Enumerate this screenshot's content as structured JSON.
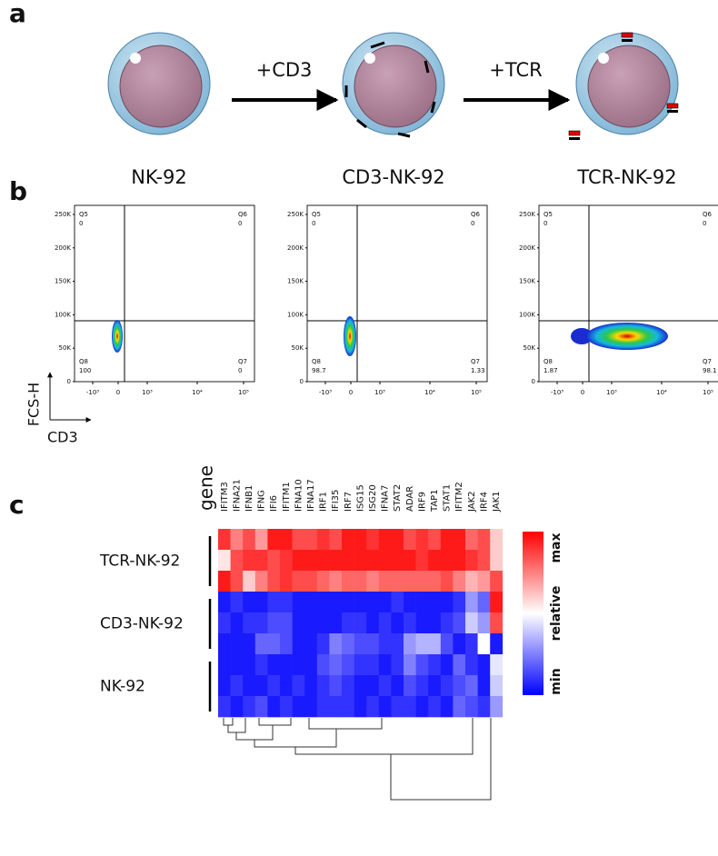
{
  "panel_a": {
    "label": "a",
    "cells": [
      "NK-92",
      "CD3-NK-92",
      "TCR-NK-92"
    ],
    "arrows": [
      "+CD3",
      "+TCR"
    ]
  },
  "panel_b": {
    "label": "b",
    "y_axis": "FCS-H",
    "x_axis": "CD3",
    "y_ticks": [
      "250K",
      "200K",
      "150K",
      "100K",
      "50K",
      "0"
    ],
    "x_ticks": [
      "-10³",
      "0",
      "10³",
      "10⁴",
      "10⁵"
    ],
    "plots": [
      {
        "quadrants": [
          {
            "name": "Q5",
            "value": 0
          },
          {
            "name": "Q6",
            "value": 0
          },
          {
            "name": "Q8",
            "value": 100
          },
          {
            "name": "Q7",
            "value": 0
          }
        ]
      },
      {
        "quadrants": [
          {
            "name": "Q5",
            "value": 0
          },
          {
            "name": "Q6",
            "value": 0
          },
          {
            "name": "Q8",
            "value": 98.7
          },
          {
            "name": "Q7",
            "value": 1.33
          }
        ]
      },
      {
        "quadrants": [
          {
            "name": "Q5",
            "value": 0
          },
          {
            "name": "Q6",
            "value": 0
          },
          {
            "name": "Q8",
            "value": 1.87
          },
          {
            "name": "Q7",
            "value": 98.1
          }
        ]
      }
    ]
  },
  "panel_c": {
    "label": "c",
    "gene_header": "gene",
    "genes": [
      "IFITM3",
      "IFNA21",
      "IFNB1",
      "IFNG",
      "IFI6",
      "IFITM1",
      "IFNA10",
      "IFNA17",
      "IRF1",
      "IFI35",
      "IRF7",
      "ISG15",
      "ISG20",
      "IFNA7",
      "STAT2",
      "ADAR",
      "IRF9",
      "TAP1",
      "STAT1",
      "IFITM2",
      "JAK2",
      "IRF4",
      "JAK1"
    ],
    "groups": [
      "TCR-NK-92",
      "CD3-NK-92",
      "NK-92"
    ],
    "legend": {
      "max": "max",
      "title": "relative",
      "min": "min"
    },
    "heatmap": [
      [
        0.9,
        0.75,
        0.85,
        0.7,
        0.95,
        0.95,
        0.85,
        0.85,
        0.9,
        0.85,
        0.95,
        0.95,
        0.9,
        0.95,
        0.95,
        0.85,
        0.9,
        0.85,
        0.95,
        0.95,
        0.8,
        0.85,
        0.6
      ],
      [
        0.55,
        0.85,
        0.9,
        0.9,
        0.85,
        0.9,
        0.95,
        0.95,
        0.95,
        0.95,
        0.95,
        0.95,
        0.95,
        0.95,
        0.95,
        0.95,
        0.9,
        0.95,
        0.95,
        0.95,
        0.9,
        0.85,
        0.6
      ],
      [
        0.95,
        0.85,
        0.6,
        0.75,
        0.85,
        0.9,
        0.85,
        0.85,
        0.8,
        0.75,
        0.8,
        0.8,
        0.75,
        0.8,
        0.8,
        0.8,
        0.8,
        0.8,
        0.85,
        0.75,
        0.65,
        0.7,
        0.85
      ],
      [
        0.05,
        0.1,
        0.05,
        0.05,
        0.1,
        0.1,
        0.05,
        0.05,
        0.05,
        0.05,
        0.05,
        0.05,
        0.05,
        0.05,
        0.1,
        0.05,
        0.05,
        0.05,
        0.05,
        0.1,
        0.3,
        0.2,
        0.95
      ],
      [
        0.1,
        0.05,
        0.1,
        0.1,
        0.15,
        0.15,
        0.05,
        0.05,
        0.05,
        0.05,
        0.1,
        0.1,
        0.05,
        0.1,
        0.05,
        0.1,
        0.05,
        0.05,
        0.1,
        0.15,
        0.4,
        0.3,
        0.85
      ],
      [
        0.05,
        0.05,
        0.05,
        0.2,
        0.2,
        0.15,
        0.05,
        0.05,
        0.1,
        0.25,
        0.2,
        0.15,
        0.15,
        0.1,
        0.1,
        0.3,
        0.35,
        0.35,
        0.15,
        0.05,
        0.1,
        0.5,
        0.05
      ],
      [
        0.05,
        0.05,
        0.05,
        0.1,
        0.05,
        0.05,
        0.05,
        0.05,
        0.15,
        0.2,
        0.15,
        0.1,
        0.1,
        0.05,
        0.1,
        0.25,
        0.15,
        0.1,
        0.05,
        0.2,
        0.1,
        0.05,
        0.45
      ],
      [
        0.05,
        0.1,
        0.05,
        0.05,
        0.1,
        0.05,
        0.1,
        0.05,
        0.1,
        0.15,
        0.1,
        0.05,
        0.05,
        0.1,
        0.05,
        0.15,
        0.1,
        0.05,
        0.1,
        0.15,
        0.2,
        0.05,
        0.4
      ],
      [
        0.1,
        0.05,
        0.1,
        0.15,
        0.05,
        0.1,
        0.05,
        0.05,
        0.1,
        0.1,
        0.1,
        0.05,
        0.1,
        0.05,
        0.1,
        0.1,
        0.05,
        0.1,
        0.05,
        0.2,
        0.15,
        0.1,
        0.3
      ]
    ]
  }
}
